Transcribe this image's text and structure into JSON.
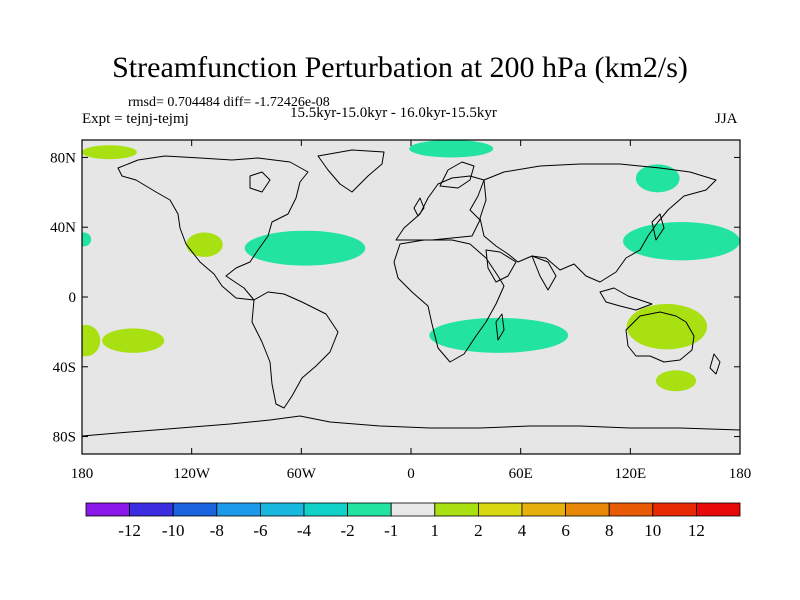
{
  "chart_data": {
    "type": "contour_map",
    "title": "Streamfunction Perturbation at 200 hPa (km2/s)",
    "stats_text": "rmsd= 0.704484 diff= -1.72426e-08",
    "expt_text": "Expt = tejnj-tejmj",
    "period_text": "15.5kyr-15.0kyr - 16.0kyr-15.5kyr",
    "season": "JJA",
    "variable": "Streamfunction perturbation",
    "units": "km2/s",
    "level": "200 hPa",
    "xlim": [
      -180,
      180
    ],
    "ylim": [
      -90,
      90
    ],
    "x_tick_values": [
      -180,
      -120,
      -60,
      0,
      60,
      120,
      180
    ],
    "x_tick_labels": [
      "180",
      "120W",
      "60W",
      "0",
      "60E",
      "120E",
      "180"
    ],
    "y_tick_values": [
      80,
      40,
      0,
      -40,
      -80
    ],
    "y_tick_labels": [
      "80N",
      "40N",
      "0",
      "40S",
      "80S"
    ],
    "colorbar": {
      "labels": [
        "-12",
        "-10",
        "-8",
        "-6",
        "-4",
        "-2",
        "-1",
        "1",
        "2",
        "4",
        "6",
        "8",
        "10",
        "12"
      ],
      "colors": [
        "#8a18e8",
        "#3a2ee0",
        "#1a64e0",
        "#1a9ae8",
        "#18b8e0",
        "#10d2c8",
        "#22e4a0",
        "#e8e8e8",
        "#a8e012",
        "#d8d812",
        "#e8b00c",
        "#e88808",
        "#e85a04",
        "#e82a04",
        "#e80a0a"
      ]
    },
    "regions": [
      {
        "name": "positive-north-pacific-west",
        "category": "1 to 2",
        "color": "#a8e012",
        "center": [
          -165,
          83
        ],
        "radius": [
          15,
          4
        ]
      },
      {
        "name": "positive-western-us",
        "category": "1 to 2",
        "color": "#a8e012",
        "center": [
          -113,
          30
        ],
        "radius": [
          10,
          7
        ]
      },
      {
        "name": "positive-east-pacific",
        "category": "1 to 2",
        "color": "#a8e012",
        "center": [
          -152,
          -25
        ],
        "radius": [
          17,
          7
        ]
      },
      {
        "name": "positive-west-pacific-south",
        "category": "1 to 2",
        "color": "#a8e012",
        "center": [
          -178,
          -25
        ],
        "radius": [
          8,
          9
        ]
      },
      {
        "name": "positive-australia",
        "category": "1 to 2",
        "color": "#a8e012",
        "center": [
          140,
          -17
        ],
        "radius": [
          22,
          13
        ]
      },
      {
        "name": "positive-south-of-australia",
        "category": "1 to 2",
        "color": "#a8e012",
        "center": [
          145,
          -48
        ],
        "radius": [
          11,
          6
        ]
      },
      {
        "name": "negative-north-atlantic",
        "category": "-1 to -2",
        "color": "#22e4a0",
        "center": [
          -58,
          28
        ],
        "radius": [
          33,
          10
        ]
      },
      {
        "name": "negative-arctic-europe",
        "category": "-1 to -2",
        "color": "#22e4a0",
        "center": [
          22,
          85
        ],
        "radius": [
          23,
          5
        ]
      },
      {
        "name": "negative-siberia",
        "category": "-1 to -2",
        "color": "#22e4a0",
        "center": [
          135,
          68
        ],
        "radius": [
          12,
          8
        ]
      },
      {
        "name": "negative-east-asia",
        "category": "-1 to -2",
        "color": "#22e4a0",
        "center": [
          148,
          32
        ],
        "radius": [
          32,
          11
        ]
      },
      {
        "name": "negative-southern-africa",
        "category": "-1 to -2",
        "color": "#22e4a0",
        "center": [
          48,
          -22
        ],
        "radius": [
          38,
          10
        ]
      },
      {
        "name": "negative-atlantic-west",
        "category": "-1 to -2",
        "color": "#22e4a0",
        "center": [
          -179,
          33
        ],
        "radius": [
          4,
          4
        ]
      }
    ]
  }
}
